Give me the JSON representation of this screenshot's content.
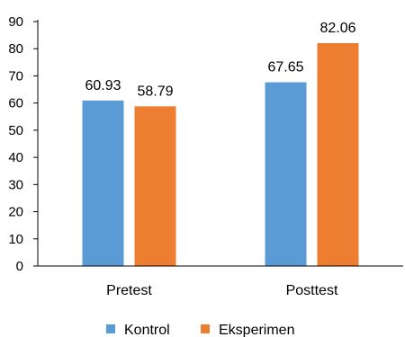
{
  "chart_data": {
    "type": "bar",
    "title": "",
    "xlabel": "",
    "ylabel": "",
    "categories": [
      "Pretest",
      "Posttest"
    ],
    "series": [
      {
        "name": "Kontrol",
        "values": [
          60.93,
          67.65
        ],
        "color": "#5b9bd5"
      },
      {
        "name": "Eksperimen",
        "values": [
          58.79,
          82.06
        ],
        "color": "#ed7d31"
      }
    ],
    "data_labels": [
      [
        "60.93",
        "67.65"
      ],
      [
        "58.79",
        "82.06"
      ]
    ],
    "ylim": [
      0,
      90
    ],
    "yticks": [
      0,
      10,
      20,
      30,
      40,
      50,
      60,
      70,
      80,
      90
    ],
    "grid": false,
    "legend_position": "bottom"
  }
}
